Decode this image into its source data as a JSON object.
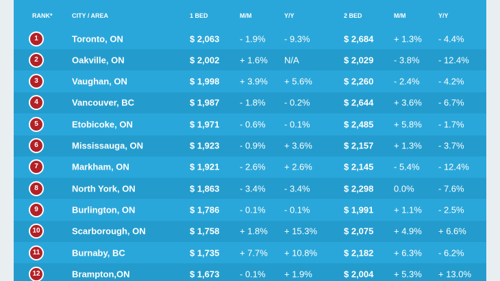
{
  "table": {
    "header": [
      "RANK*",
      "CITY / AREA",
      "1 BED",
      "M/M",
      "Y/Y",
      "2 BED",
      "M/M",
      "Y/Y"
    ],
    "rows": [
      [
        "1",
        "Toronto, ON",
        "$ 2,063",
        "- 1.9%",
        "- 9.3%",
        "$ 2,684",
        "+ 1.3%",
        "- 4.4%"
      ],
      [
        "2",
        "Oakville, ON",
        "$ 2,002",
        "+ 1.6%",
        "N/A",
        "$ 2,029",
        "- 3.8%",
        "- 12.4%"
      ],
      [
        "3",
        "Vaughan, ON",
        "$ 1,998",
        "+ 3.9%",
        "+ 5.6%",
        "$ 2,260",
        "- 2.4%",
        "- 4.2%"
      ],
      [
        "4",
        "Vancouver, BC",
        "$ 1,987",
        "- 1.8%",
        "- 0.2%",
        "$ 2,644",
        "+ 3.6%",
        "- 6.7%"
      ],
      [
        "5",
        "Etobicoke, ON",
        "$ 1,971",
        "- 0.6%",
        "- 0.1%",
        "$ 2,485",
        "+ 5.8%",
        "- 1.7%"
      ],
      [
        "6",
        "Mississauga, ON",
        "$ 1,923",
        "- 0.9%",
        "+ 3.6%",
        "$ 2,157",
        "+ 1.3%",
        "- 3.7%"
      ],
      [
        "7",
        "Markham, ON",
        "$ 1,921",
        "- 2.6%",
        "+ 2.6%",
        "$ 2,145",
        "- 5.4%",
        "- 12.4%"
      ],
      [
        "8",
        "North York, ON",
        "$ 1,863",
        "- 3.4%",
        "- 3.4%",
        "$ 2,298",
        "0.0%",
        "- 7.6%"
      ],
      [
        "9",
        "Burlington, ON",
        "$ 1,786",
        "- 0.1%",
        "- 0.1%",
        "$ 1,991",
        "+ 1.1%",
        "- 2.5%"
      ],
      [
        "10",
        "Scarborough, ON",
        "$ 1,758",
        "+ 1.8%",
        "+ 15.3%",
        "$ 2,075",
        "+ 4.9%",
        "+ 6.6%"
      ],
      [
        "11",
        "Burnaby, BC",
        "$ 1,735",
        "+ 7.7%",
        "+ 10.8%",
        "$ 2,182",
        "+ 6.3%",
        "- 6.2%"
      ],
      [
        "12",
        "Brampton,ON",
        "$ 1,673",
        "- 0.1%",
        "+ 1.9%",
        "$ 2,004",
        "+ 5.3%",
        "+ 13.0%"
      ]
    ]
  }
}
